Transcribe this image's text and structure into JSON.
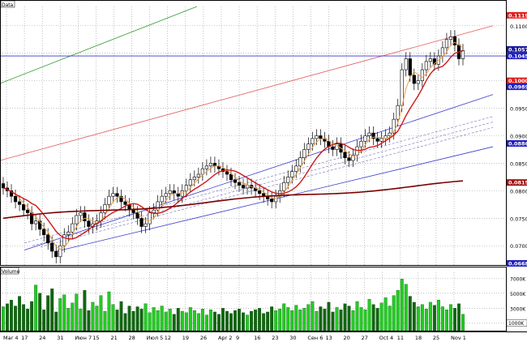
{
  "chart_data": [
    {
      "type": "candlestick",
      "panel_label": "Data",
      "y_ticks": [
        0.11,
        0.105,
        0.1,
        0.095,
        0.09,
        0.085,
        0.08,
        0.075,
        0.07
      ],
      "ylim": [
        0.0665,
        0.1135
      ],
      "grid": true,
      "price_tags": [
        {
          "value": "0.1119",
          "level": 0.1119,
          "color": "#e02020"
        },
        {
          "value": "0.1057",
          "level": 0.1057,
          "color": "#1a1a9a"
        },
        {
          "value": "0.1045",
          "level": 0.1045,
          "color": "#2020c0"
        },
        {
          "value": "0.1000",
          "level": 0.1,
          "color": "#e02020"
        },
        {
          "value": "0.0989",
          "level": 0.0989,
          "color": "#2020c0"
        },
        {
          "value": "0.0886",
          "level": 0.0886,
          "color": "#2020c0"
        },
        {
          "value": "0.0815",
          "level": 0.0815,
          "color": "#a01010"
        },
        {
          "value": "0.0668",
          "level": 0.0668,
          "color": "#2020c0"
        }
      ],
      "x_labels": [
        "Mar 4",
        "17",
        "24",
        "31",
        "Июн 7",
        "15",
        "21",
        "28",
        "Июл 5",
        "12",
        "19",
        "26",
        "Apr 2",
        "9",
        "16",
        "23",
        "30",
        "Сен 6",
        "13",
        "20",
        "27",
        "Oct 4",
        "11",
        "18",
        "25",
        "Nov 1"
      ],
      "close": [
        0.0805,
        0.08,
        0.079,
        0.078,
        0.0775,
        0.0765,
        0.076,
        0.074,
        0.0745,
        0.073,
        0.072,
        0.0705,
        0.069,
        0.068,
        0.07,
        0.072,
        0.0725,
        0.074,
        0.0755,
        0.076,
        0.0745,
        0.0735,
        0.074,
        0.0745,
        0.076,
        0.0775,
        0.079,
        0.0795,
        0.079,
        0.078,
        0.0775,
        0.0765,
        0.076,
        0.075,
        0.0735,
        0.074,
        0.076,
        0.0765,
        0.078,
        0.079,
        0.0795,
        0.08,
        0.0795,
        0.079,
        0.08,
        0.081,
        0.082,
        0.0825,
        0.083,
        0.084,
        0.0845,
        0.085,
        0.0845,
        0.084,
        0.0835,
        0.083,
        0.082,
        0.0815,
        0.081,
        0.0805,
        0.081,
        0.0805,
        0.08,
        0.0795,
        0.079,
        0.0785,
        0.078,
        0.079,
        0.08,
        0.0815,
        0.0825,
        0.0835,
        0.0845,
        0.086,
        0.0875,
        0.0885,
        0.0895,
        0.09,
        0.0895,
        0.089,
        0.088,
        0.0875,
        0.0885,
        0.087,
        0.086,
        0.0855,
        0.0865,
        0.088,
        0.089,
        0.09,
        0.0905,
        0.0895,
        0.089,
        0.0895,
        0.09,
        0.0905,
        0.093,
        0.0955,
        0.102,
        0.104,
        0.101,
        0.0995,
        0.1,
        0.102,
        0.1035,
        0.104,
        0.103,
        0.1045,
        0.106,
        0.1075,
        0.108,
        0.1065,
        0.104,
        0.1055
      ],
      "volume": {
        "label": "Volume",
        "y_ticks": [
          "7000K",
          "5000K",
          "3000K",
          "1000K"
        ],
        "tick_values": [
          7000,
          5000,
          3000,
          1000
        ],
        "ylim": [
          0,
          7800
        ],
        "last_tag": "1000K",
        "values": [
          3200,
          3600,
          4100,
          3300,
          4600,
          3500,
          2900,
          3900,
          6100,
          5000,
          2800,
          4700,
          5600,
          2500,
          4300,
          4800,
          3000,
          3700,
          4900,
          2900,
          5400,
          2700,
          3800,
          3300,
          4700,
          2600,
          5200,
          3500,
          2800,
          3900,
          2300,
          3300,
          2600,
          3200,
          2900,
          3600,
          2400,
          3100,
          2700,
          3300,
          2500,
          2900,
          2200,
          3000,
          2600,
          2400,
          3100,
          2700,
          2300,
          2900,
          2100,
          2800,
          2500,
          2200,
          3000,
          2600,
          2300,
          2700,
          2900,
          2400,
          2100,
          2600,
          2800,
          3000,
          2300,
          2500,
          3200,
          2700,
          2900,
          3600,
          3100,
          2700,
          3400,
          2800,
          3000,
          3500,
          3900,
          2600,
          3200,
          2900,
          3800,
          2500,
          3100,
          2800,
          3600,
          3300,
          2700,
          3900,
          3100,
          2800,
          4200,
          3500,
          3000,
          3700,
          4400,
          3300,
          4700,
          5400,
          6900,
          6200,
          4600,
          3800,
          3200,
          3500,
          2900,
          3800,
          3400,
          4100,
          3200,
          2800,
          3500,
          3000,
          3600,
          2200
        ]
      }
    }
  ]
}
